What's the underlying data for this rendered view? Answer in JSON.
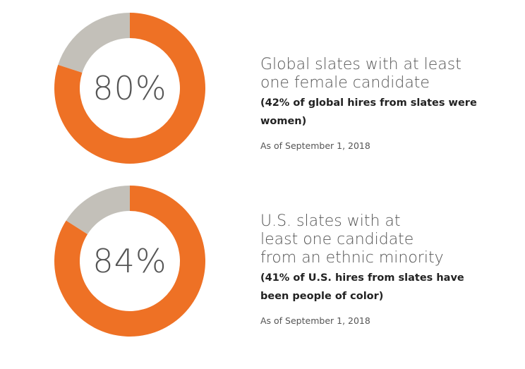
{
  "chart_data": [
    {
      "type": "pie",
      "value": 80,
      "value_label": "80%",
      "title": "Global slates with at least\none female candidate",
      "note": "(42% of global hires from slates were women)",
      "as_of": "As of September 1, 2018",
      "colors": {
        "value": "#EE7125",
        "remainder": "#C3C0B9"
      }
    },
    {
      "type": "pie",
      "value": 84,
      "value_label": "84%",
      "title": "U.S. slates with at\nleast one candidate\nfrom an ethnic minority",
      "note": "(41% of U.S. hires from slates have\nbeen people of color)",
      "as_of": "As of September 1, 2018",
      "colors": {
        "value": "#EE7125",
        "remainder": "#C3C0B9"
      }
    }
  ]
}
